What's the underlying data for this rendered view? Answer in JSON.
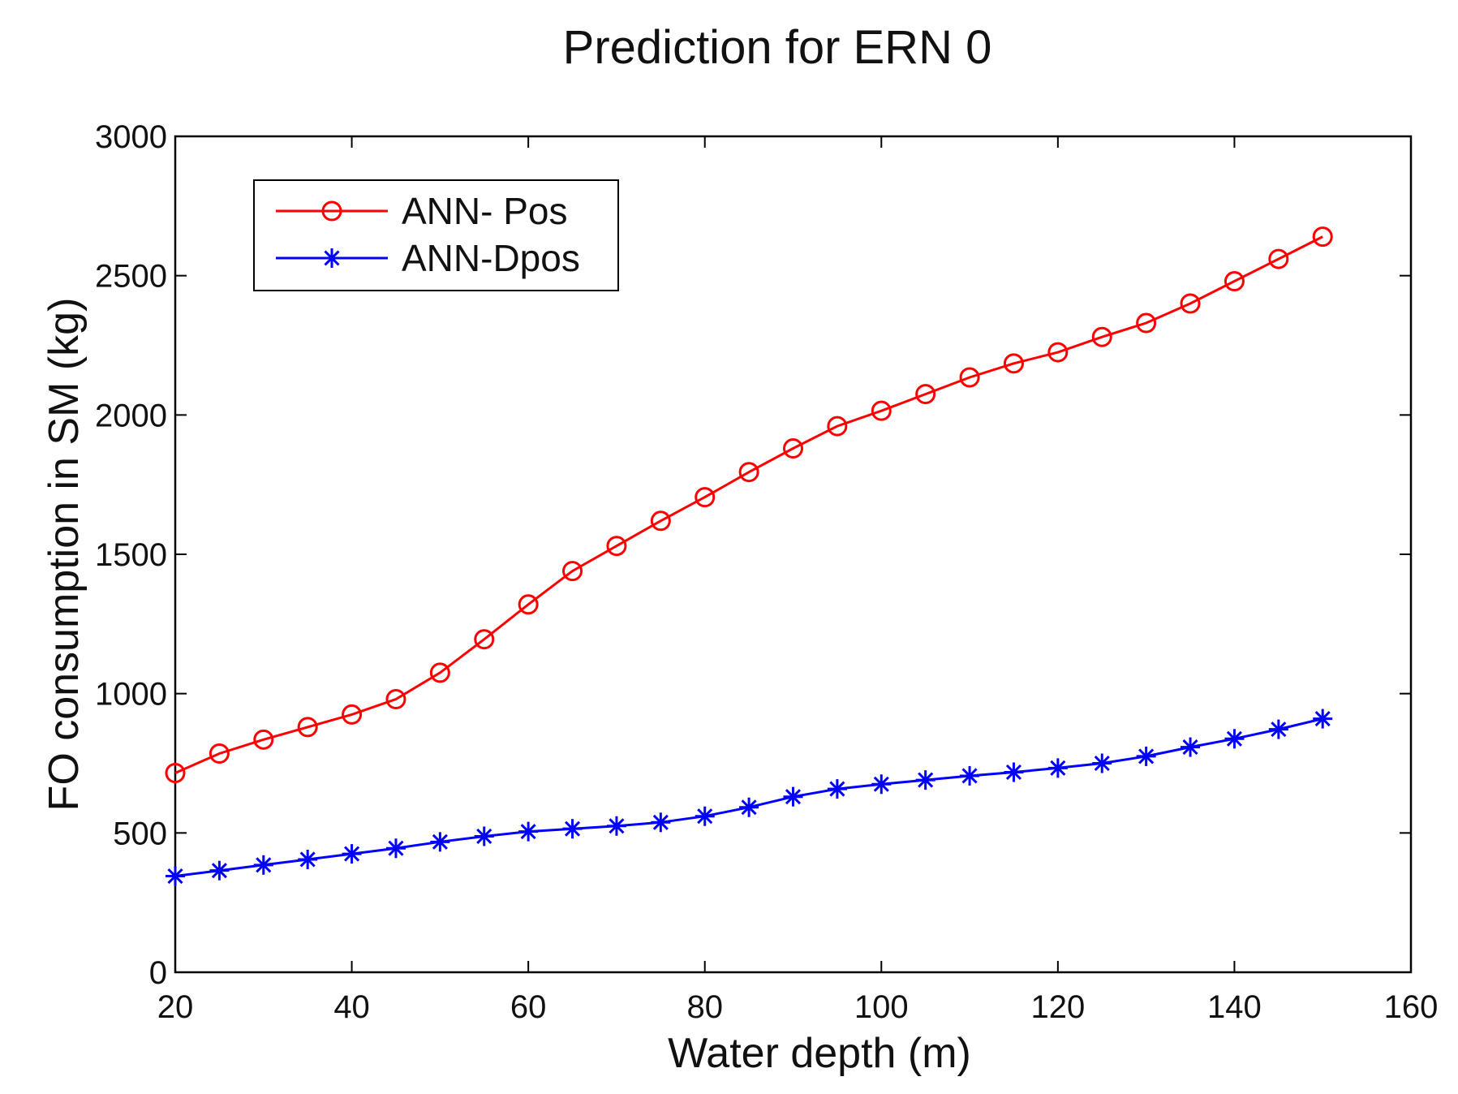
{
  "chart_data": {
    "type": "line",
    "title": "Prediction for ERN 0",
    "xlabel": "Water depth (m)",
    "ylabel": "FO consumption in SM (kg)",
    "xlim": [
      20,
      160
    ],
    "ylim": [
      0,
      3000
    ],
    "xticks": [
      20,
      40,
      60,
      80,
      100,
      120,
      140,
      160
    ],
    "yticks": [
      0,
      500,
      1000,
      1500,
      2000,
      2500,
      3000
    ],
    "grid": false,
    "legend_position": "top-left",
    "x": [
      20,
      25,
      30,
      35,
      40,
      45,
      50,
      55,
      60,
      65,
      70,
      75,
      80,
      85,
      90,
      95,
      100,
      105,
      110,
      115,
      120,
      125,
      130,
      135,
      140,
      145,
      150
    ],
    "series": [
      {
        "name": "ANN- Pos",
        "color": "#ff0000",
        "marker": "circle",
        "values": [
          715,
          785,
          835,
          880,
          925,
          980,
          1075,
          1195,
          1320,
          1440,
          1530,
          1620,
          1705,
          1795,
          1880,
          1960,
          2015,
          2075,
          2135,
          2185,
          2225,
          2280,
          2330,
          2400,
          2480,
          2560,
          2640
        ]
      },
      {
        "name": "ANN-Dpos",
        "color": "#0000ff",
        "marker": "asterisk",
        "values": [
          345,
          365,
          385,
          405,
          425,
          445,
          468,
          488,
          505,
          515,
          525,
          538,
          560,
          592,
          630,
          658,
          675,
          690,
          705,
          718,
          733,
          750,
          775,
          808,
          838,
          872,
          910
        ]
      }
    ]
  }
}
